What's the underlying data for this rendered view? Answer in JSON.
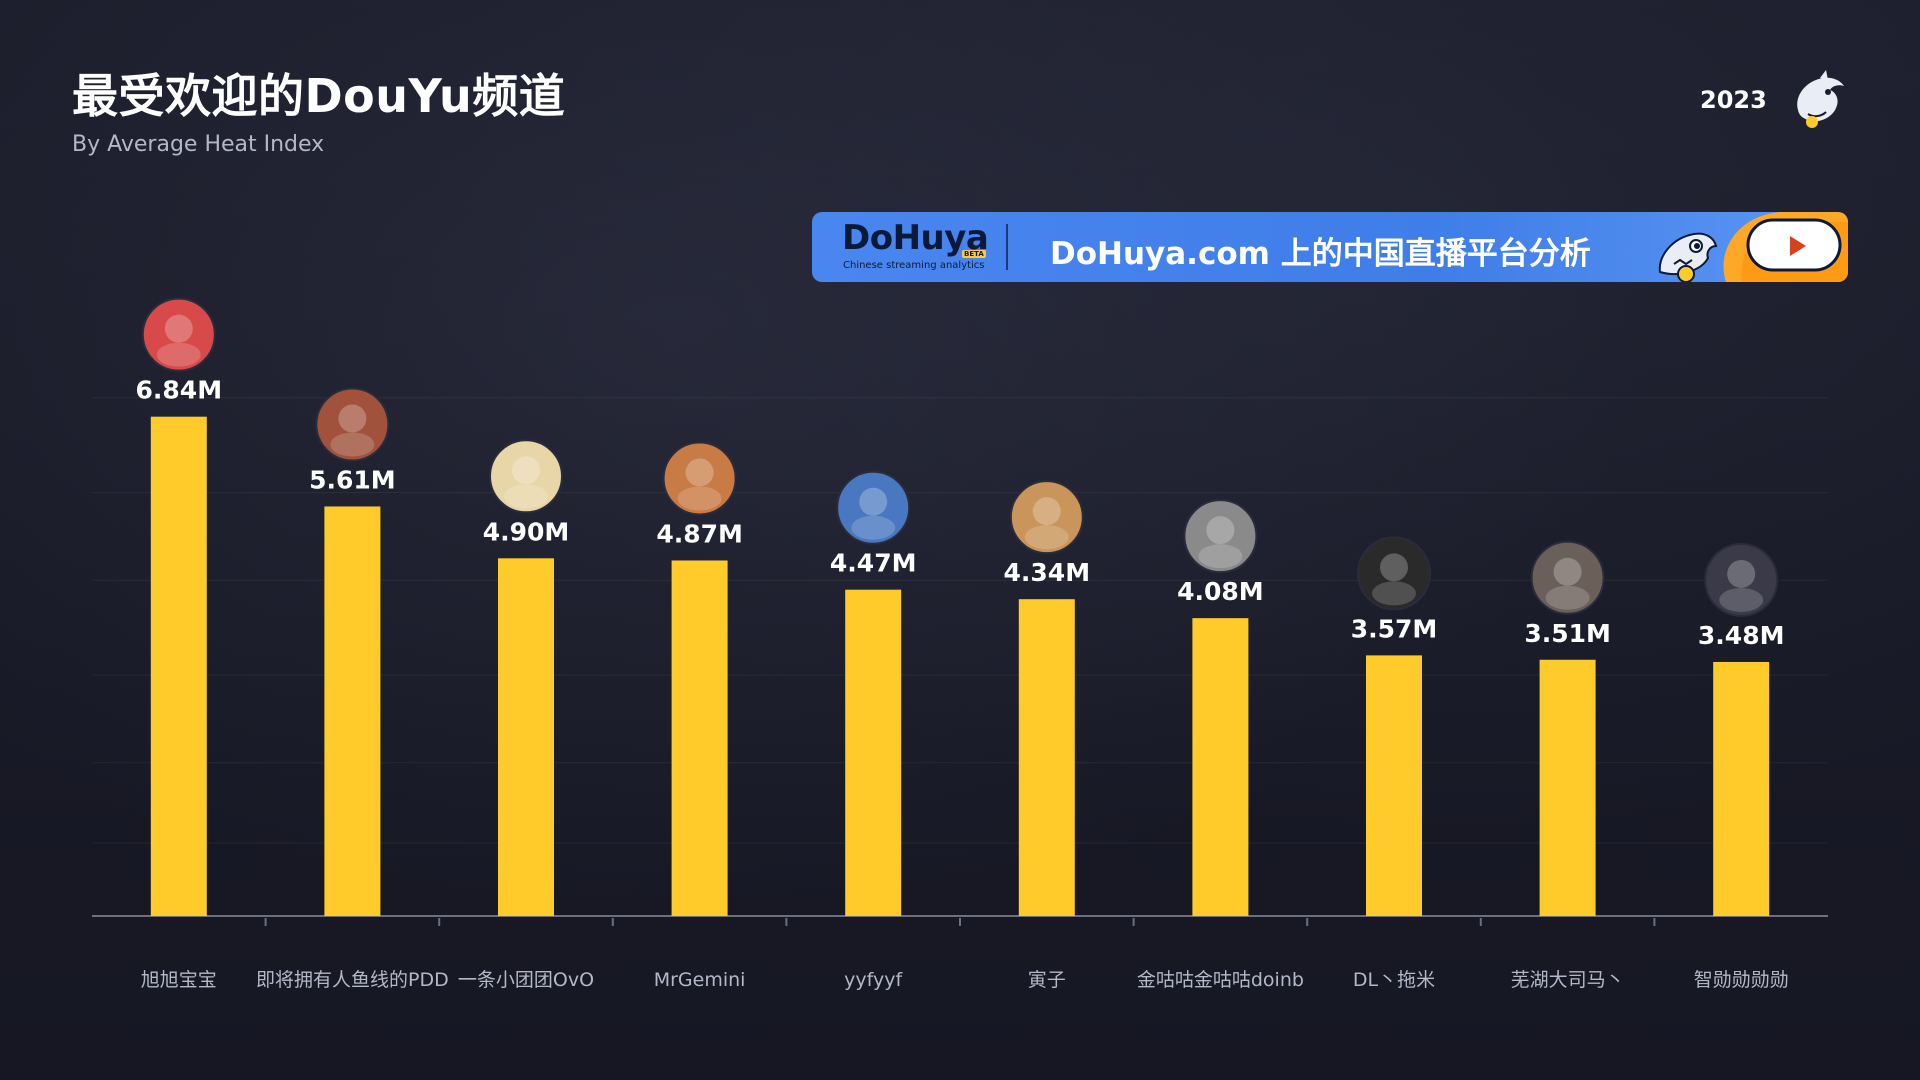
{
  "header": {
    "title": "最受欢迎的DouYu频道",
    "subtitle": "By Average Heat Index",
    "year": "2023",
    "logo_icon": "shark-mascot-icon"
  },
  "banner": {
    "brand": "DoHuya",
    "beta": "BETA",
    "tagline": "Chinese streaming analytics",
    "text": "DoHuya.com 上的中国直播平台分析",
    "mascot_icon": "shark-and-tiger-mascot-icon"
  },
  "colors": {
    "background": "#181927",
    "bar": "#ffcb2b",
    "text": "#ffffff",
    "axis_label": "#b4b7c8",
    "banner": "#4a86f0"
  },
  "chart_data": {
    "type": "bar",
    "unit": "M",
    "categories": [
      "旭旭宝宝",
      "即将拥有人鱼线的PDD",
      "一条小团团OvO",
      "MrGemini",
      "yyfyyf",
      "寅子",
      "金咕咕金咕咕doinb",
      "DL丶拖米",
      "芜湖大司马丶",
      "智勋勋勋勋"
    ],
    "values": [
      6.84,
      5.61,
      4.9,
      4.87,
      4.47,
      4.34,
      4.08,
      3.57,
      3.51,
      3.48
    ],
    "value_labels": [
      "6.84M",
      "5.61M",
      "4.90M",
      "4.87M",
      "4.47M",
      "4.34M",
      "4.08M",
      "3.57M",
      "3.51M",
      "3.48M"
    ],
    "avatar_icons": [
      "avatar-blushing-face-icon",
      "avatar-muscle-torso-icon",
      "avatar-anime-girl-icon",
      "avatar-anime-boy-icon",
      "avatar-shark-hat-icon",
      "avatar-hamster-icon",
      "avatar-person-photo-icon",
      "avatar-dog-nose-icon",
      "avatar-man-suit-icon",
      "avatar-man-dark-icon"
    ],
    "avatar_colors": [
      "#d84a4a",
      "#a0523c",
      "#e8d6a8",
      "#c97b45",
      "#4a78c0",
      "#c9955a",
      "#8a8a8a",
      "#2a2a2a",
      "#6b5f5a",
      "#3a3a48"
    ],
    "ylim": [
      0,
      7.5
    ],
    "grid": true,
    "title": "最受欢迎的DouYu频道",
    "subtitle": "By Average Heat Index",
    "xlabel": "",
    "ylabel": ""
  }
}
